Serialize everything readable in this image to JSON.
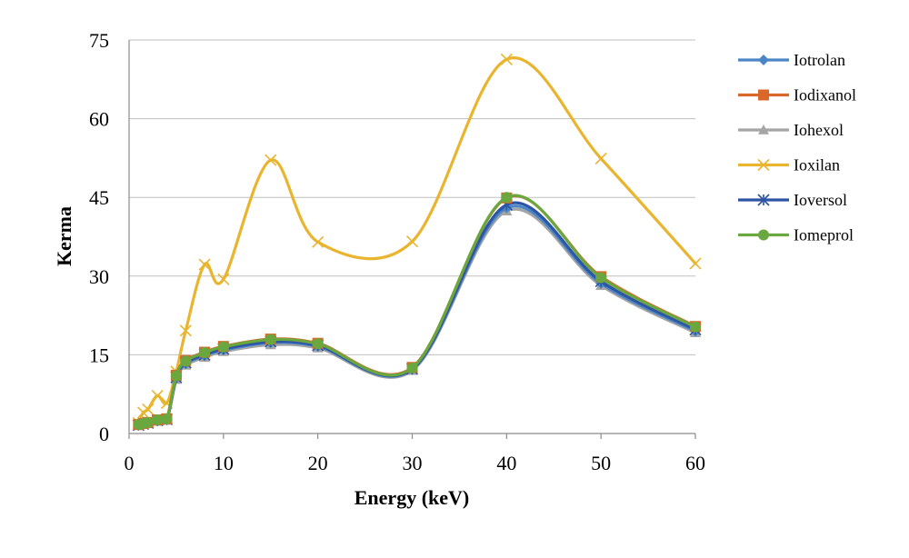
{
  "chart_data": {
    "type": "line",
    "title": "",
    "xlabel": "Energy (keV)",
    "ylabel": "Kerma",
    "xlim": [
      0,
      60
    ],
    "ylim": [
      0,
      75
    ],
    "x_ticks": [
      "0",
      "10",
      "20",
      "30",
      "40",
      "50",
      "60"
    ],
    "y_ticks": [
      "0",
      "15",
      "30",
      "45",
      "60",
      "75"
    ],
    "grid": "horizontal",
    "legend_position": "right",
    "x": [
      1,
      1.5,
      2,
      3,
      4,
      5,
      6,
      8,
      10,
      15,
      20,
      30,
      40,
      50,
      60
    ],
    "series": [
      {
        "name": "Iotrolan",
        "color": "#4a86c5",
        "marker": "diamond",
        "values": [
          1.6,
          1.8,
          2.0,
          2.4,
          2.6,
          10.5,
          13.3,
          14.8,
          15.9,
          17.3,
          16.6,
          12.2,
          43.0,
          28.6,
          19.5
        ]
      },
      {
        "name": "Iodixanol",
        "color": "#d8692a",
        "marker": "square",
        "values": [
          1.7,
          1.9,
          2.1,
          2.6,
          2.8,
          11.1,
          13.9,
          15.5,
          16.6,
          18.0,
          17.2,
          12.6,
          44.9,
          29.9,
          20.4
        ]
      },
      {
        "name": "Iohexol",
        "color": "#a5a5a5",
        "marker": "triangle",
        "values": [
          1.5,
          1.7,
          1.9,
          2.3,
          2.5,
          10.3,
          13.0,
          14.5,
          15.6,
          16.9,
          16.3,
          12.0,
          42.4,
          28.2,
          19.2
        ]
      },
      {
        "name": "Ioxilan",
        "color": "#e9b42e",
        "marker": "x",
        "values": [
          2.0,
          4.0,
          4.6,
          7.2,
          5.8,
          11.8,
          19.6,
          32.2,
          29.4,
          52.1,
          36.5,
          36.6,
          71.3,
          52.4,
          32.4
        ]
      },
      {
        "name": "Ioversol",
        "color": "#2e55a5",
        "marker": "star",
        "values": [
          1.6,
          1.8,
          2.0,
          2.5,
          2.7,
          10.7,
          13.5,
          15.0,
          16.1,
          17.5,
          16.8,
          12.3,
          43.6,
          29.0,
          19.8
        ]
      },
      {
        "name": "Iomeprol",
        "color": "#6aa73e",
        "marker": "circle",
        "values": [
          1.7,
          1.9,
          2.1,
          2.6,
          2.8,
          11.0,
          13.8,
          15.4,
          16.5,
          17.9,
          17.1,
          12.5,
          45.0,
          29.7,
          20.3
        ]
      }
    ]
  }
}
